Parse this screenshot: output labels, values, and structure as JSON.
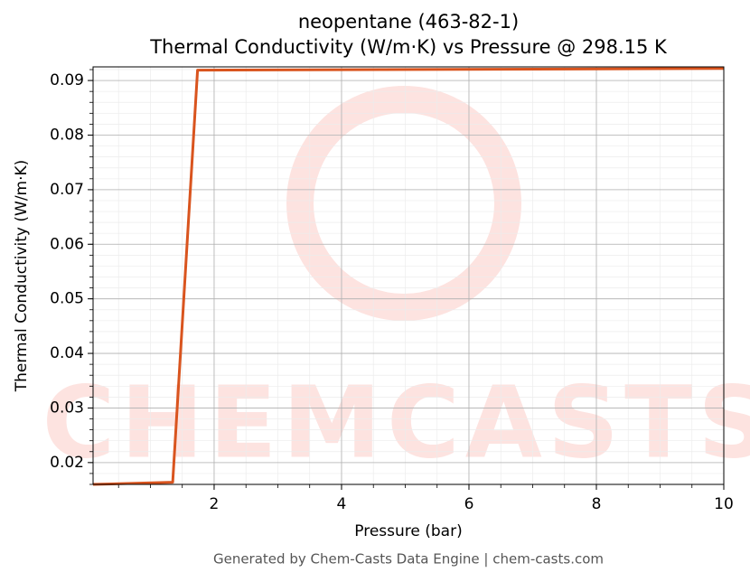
{
  "chart_data": {
    "type": "line",
    "title": "neopentane (463-82-1)",
    "subtitle": "Thermal Conductivity (W/m·K) vs Pressure @ 298.15 K",
    "x_label": "Pressure (bar)",
    "y_label": "Thermal Conductivity (W/m·K)",
    "footer": "Generated by Chem-Casts Data Engine | chem-casts.com",
    "watermark": "CHEMCASTS",
    "xlim": [
      0.1,
      10
    ],
    "ylim": [
      0.016,
      0.0925
    ],
    "xticks": [
      2,
      4,
      6,
      8,
      10
    ],
    "yticks": [
      0.02,
      0.03,
      0.04,
      0.05,
      0.06,
      0.07,
      0.08,
      0.09
    ],
    "grid": true,
    "series": [
      {
        "name": "Thermal Conductivity",
        "color": "#d9541e",
        "x": [
          0.1,
          1.35,
          1.74,
          10
        ],
        "values": [
          0.016,
          0.0164,
          0.0919,
          0.0922
        ]
      }
    ]
  }
}
